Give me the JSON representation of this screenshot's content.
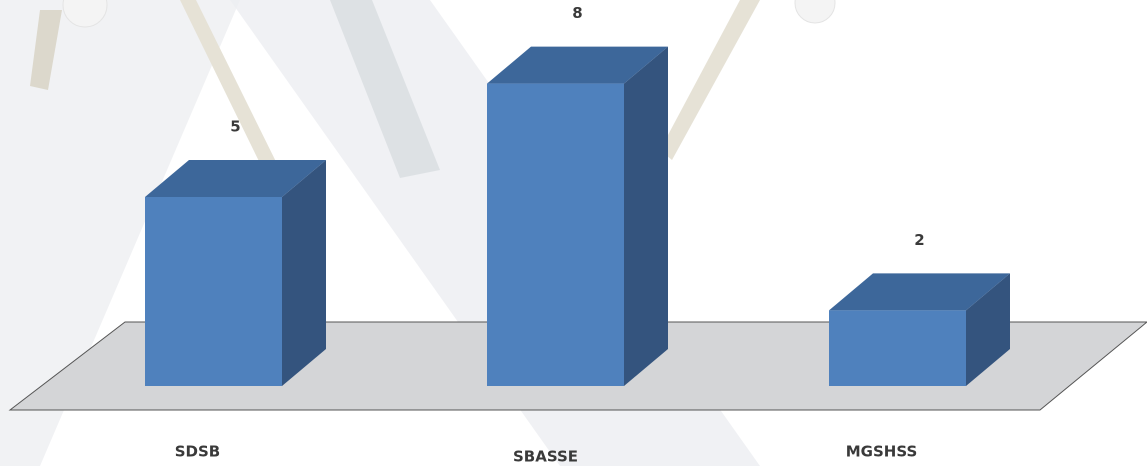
{
  "chart_data": {
    "type": "bar3d",
    "categories": [
      "SDSB",
      "SBASSE",
      "MGSHSS"
    ],
    "values": [
      5,
      8,
      2
    ],
    "color": "#4f81bd"
  }
}
